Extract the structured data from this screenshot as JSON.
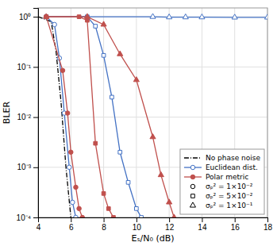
{
  "chart_data": {
    "type": "line",
    "xlabel": "Eₛ/N₀ (dB)",
    "ylabel": "BLER",
    "log": "y",
    "grid": true,
    "legend": "lower right",
    "xlim": [
      4,
      18
    ],
    "xticks": [
      4,
      6,
      8,
      10,
      12,
      14,
      16,
      18
    ],
    "ylim": [
      0.0001,
      1.5
    ],
    "yticks": [
      {
        "value": 0.0001,
        "label": "10⁻⁴"
      },
      {
        "value": 0.001,
        "label": "10⁻³"
      },
      {
        "value": 0.01,
        "label": "10⁻²"
      },
      {
        "value": 0.1,
        "label": "10⁻¹"
      },
      {
        "value": 1,
        "label": "10⁰"
      }
    ],
    "legend_entries": [
      {
        "label": "No phase noise",
        "color": "#000000",
        "line_style": "dash-dot"
      },
      {
        "label": "Euclidean dist.",
        "color": "#4472c4",
        "line_style": "solid",
        "marker": "circle-open"
      },
      {
        "label": "Polar metric",
        "color": "#c0504d",
        "line_style": "solid",
        "marker": "circle"
      },
      {
        "label": "σₚ² = 1×10⁻²",
        "color": "#000000",
        "line_style": "none",
        "marker": "circle-open"
      },
      {
        "label": "σₚ² = 5×10⁻²",
        "color": "#000000",
        "line_style": "none",
        "marker": "square-open"
      },
      {
        "label": "σₚ² = 1×10⁻¹",
        "color": "#000000",
        "line_style": "none",
        "marker": "triangle-open"
      }
    ],
    "series": [
      {
        "color": "#000000",
        "line_style": "dash-dot",
        "x": [
          4.0,
          4.8,
          5.1,
          5.4,
          5.7,
          6.0
        ],
        "values": [
          1.0,
          0.8,
          0.2,
          0.02,
          0.001,
          0.0001
        ]
      },
      {
        "color": "#4472c4",
        "line_style": "solid",
        "marker": "circle-open",
        "x": [
          4.5,
          5.0,
          5.3,
          5.6,
          5.9,
          6.1,
          6.3
        ],
        "values": [
          1.0,
          0.7,
          0.15,
          0.012,
          0.001,
          0.0002,
          0.0001
        ]
      },
      {
        "color": "#4472c4",
        "line_style": "solid",
        "marker": "square-open",
        "x": [
          4.5,
          7.0,
          7.5,
          8.0,
          8.5,
          9.0,
          9.5,
          10.0,
          10.3
        ],
        "values": [
          1.0,
          1.0,
          0.65,
          0.17,
          0.025,
          0.002,
          0.0005,
          0.00015,
          0.0001
        ]
      },
      {
        "color": "#4472c4",
        "line_style": "solid",
        "marker": "triangle-open",
        "x": [
          4.5,
          11.0,
          12.0,
          13.0,
          14.0,
          16.0,
          18.0
        ],
        "values": [
          1.0,
          1.0,
          0.98,
          0.98,
          0.98,
          0.97,
          0.97
        ]
      },
      {
        "color": "#c0504d",
        "line_style": "solid",
        "marker": "circle",
        "x": [
          4.5,
          5.5,
          5.8,
          6.0,
          6.3,
          6.5,
          6.7
        ],
        "values": [
          1.0,
          0.085,
          0.012,
          0.002,
          0.0004,
          0.00015,
          0.0001
        ]
      },
      {
        "color": "#c0504d",
        "line_style": "solid",
        "marker": "square",
        "x": [
          4.5,
          6.5,
          7.0,
          7.5,
          8.0,
          8.3,
          8.6
        ],
        "values": [
          1.0,
          1.0,
          0.85,
          0.003,
          0.0003,
          0.00015,
          0.0001
        ]
      },
      {
        "color": "#c0504d",
        "line_style": "solid",
        "marker": "triangle",
        "x": [
          4.5,
          7.0,
          8.0,
          9.0,
          10.0,
          11.0,
          11.5,
          12.0,
          12.3
        ],
        "values": [
          1.0,
          1.0,
          0.7,
          0.18,
          0.055,
          0.004,
          0.0007,
          0.0002,
          0.0001
        ]
      }
    ]
  }
}
